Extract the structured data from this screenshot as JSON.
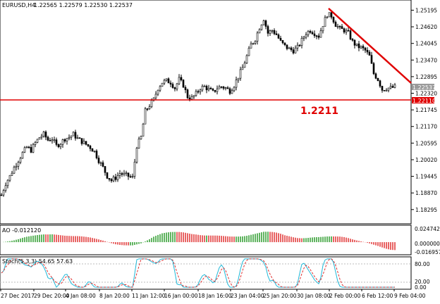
{
  "header": {
    "symbol_label": "EURUSD,H4",
    "ohlc": "1.22565 1.22579 1.22530 1.22537"
  },
  "price_scale": {
    "ticks": [
      "1.25195",
      "1.24620",
      "1.24045",
      "1.23470",
      "1.22895",
      "1.22320",
      "1.21745",
      "1.21170",
      "1.20595",
      "1.20020",
      "1.19445",
      "1.18870",
      "1.18295"
    ],
    "current_price_tag": "1.22537",
    "level_tag": "1.22110"
  },
  "annotation": {
    "level_text": "1.2211"
  },
  "ao_panel": {
    "label": "AO -0.012120",
    "ticks": [
      "0.024742",
      "0.000000",
      "-0.016957"
    ]
  },
  "stoch_panel": {
    "label": "Stoch(5,3,3) 54.65 57.63",
    "ticks": [
      "80.00",
      "20.00",
      "0.00"
    ]
  },
  "time_axis": {
    "labels": [
      "27 Dec 2017",
      "29 Dec 20:00",
      "4 Jan 08:00",
      "8 Jan 20:00",
      "11 Jan 12:00",
      "16 Jan 00:00",
      "18 Jan 16:00",
      "23 Jan 04:00",
      "25 Jan 20:00",
      "30 Jan 08:00",
      "2 Feb 00:00",
      "6 Feb 12:00",
      "9 Feb 04:00"
    ]
  },
  "colors": {
    "candle": "#000000",
    "support_line": "#e00000",
    "trend_line": "#e00000",
    "ao_up": "#2a9a2a",
    "ao_down": "#e03030",
    "stoch_main": "#20b8d8",
    "stoch_signal": "#e03030",
    "grid_border": "#000000"
  },
  "chart_data": [
    {
      "type": "candlestick",
      "title": "EURUSD,H4",
      "x": [
        "27 Dec 2017",
        "29 Dec 20:00",
        "4 Jan 08:00",
        "8 Jan 20:00",
        "11 Jan 12:00",
        "16 Jan 00:00",
        "18 Jan 16:00",
        "23 Jan 04:00",
        "25 Jan 20:00",
        "30 Jan 08:00",
        "2 Feb 00:00",
        "6 Feb 12:00",
        "9 Feb 04:00"
      ],
      "ylim": [
        1.179,
        1.2545
      ],
      "close_path": [
        [
          0,
          1.188
        ],
        [
          6,
          1.192
        ],
        [
          12,
          1.1945
        ],
        [
          18,
          1.1975
        ],
        [
          24,
          1.2
        ],
        [
          30,
          1.2025
        ],
        [
          36,
          1.2045
        ],
        [
          42,
          1.2035
        ],
        [
          48,
          1.206
        ],
        [
          54,
          1.208
        ],
        [
          60,
          1.209
        ],
        [
          66,
          1.207
        ],
        [
          72,
          1.2075
        ],
        [
          78,
          1.205
        ],
        [
          84,
          1.206
        ],
        [
          90,
          1.2075
        ],
        [
          96,
          1.208
        ],
        [
          102,
          1.209
        ],
        [
          108,
          1.2075
        ],
        [
          114,
          1.2065
        ],
        [
          120,
          1.2055
        ],
        [
          126,
          1.2045
        ],
        [
          132,
          1.203
        ],
        [
          138,
          1.2
        ],
        [
          144,
          1.1975
        ],
        [
          150,
          1.1945
        ],
        [
          156,
          1.193
        ],
        [
          162,
          1.194
        ],
        [
          168,
          1.1955
        ],
        [
          174,
          1.195
        ],
        [
          180,
          1.1945
        ],
        [
          186,
          1.194
        ],
        [
          192,
          1.205
        ],
        [
          198,
          1.208
        ],
        [
          204,
          1.217
        ],
        [
          210,
          1.219
        ],
        [
          216,
          1.221
        ],
        [
          222,
          1.225
        ],
        [
          228,
          1.227
        ],
        [
          234,
          1.2275
        ],
        [
          240,
          1.227
        ],
        [
          246,
          1.225
        ],
        [
          252,
          1.228
        ],
        [
          258,
          1.226
        ],
        [
          264,
          1.222
        ],
        [
          270,
          1.2215
        ],
        [
          276,
          1.223
        ],
        [
          282,
          1.225
        ],
        [
          288,
          1.2255
        ],
        [
          294,
          1.2245
        ],
        [
          300,
          1.2235
        ],
        [
          306,
          1.225
        ],
        [
          312,
          1.2255
        ],
        [
          318,
          1.225
        ],
        [
          324,
          1.224
        ],
        [
          330,
          1.226
        ],
        [
          336,
          1.229
        ],
        [
          342,
          1.232
        ],
        [
          348,
          1.236
        ],
        [
          354,
          1.24
        ],
        [
          360,
          1.242
        ],
        [
          366,
          1.246
        ],
        [
          372,
          1.249
        ],
        [
          378,
          1.244
        ],
        [
          384,
          1.245
        ],
        [
          390,
          1.2435
        ],
        [
          396,
          1.241
        ],
        [
          402,
          1.2395
        ],
        [
          408,
          1.2385
        ],
        [
          414,
          1.238
        ],
        [
          420,
          1.239
        ],
        [
          426,
          1.2415
        ],
        [
          432,
          1.244
        ],
        [
          438,
          1.245
        ],
        [
          444,
          1.244
        ],
        [
          450,
          1.243
        ],
        [
          456,
          1.247
        ],
        [
          462,
          1.2505
        ],
        [
          468,
          1.25
        ],
        [
          474,
          1.247
        ],
        [
          480,
          1.2455
        ],
        [
          486,
          1.245
        ],
        [
          492,
          1.244
        ],
        [
          498,
          1.241
        ],
        [
          504,
          1.2395
        ],
        [
          510,
          1.239
        ],
        [
          516,
          1.238
        ],
        [
          522,
          1.236
        ],
        [
          528,
          1.23
        ],
        [
          534,
          1.228
        ],
        [
          540,
          1.2245
        ],
        [
          546,
          1.225
        ],
        [
          552,
          1.225
        ],
        [
          558,
          1.2254
        ]
      ]
    },
    {
      "type": "bar",
      "title": "AO -0.012120",
      "ylim": [
        -0.0205,
        0.0285
      ]
    },
    {
      "type": "line",
      "title": "Stoch(5,3,3) 54.65 57.63",
      "ylim": [
        0,
        100
      ]
    }
  ]
}
